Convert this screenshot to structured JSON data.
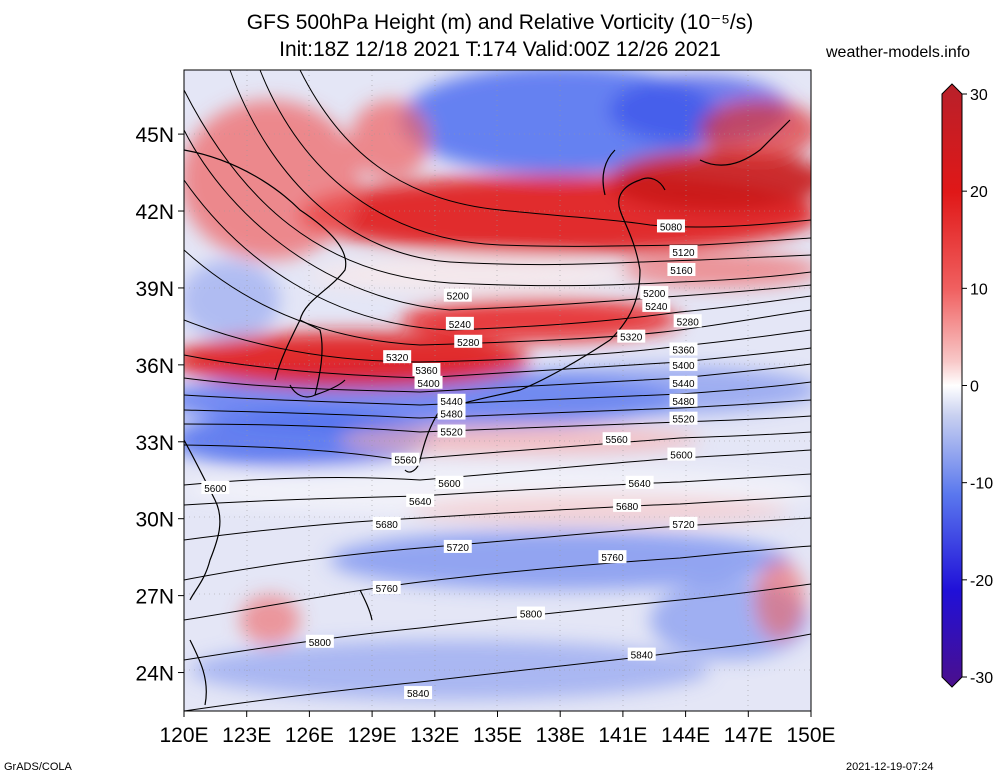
{
  "header": {
    "title_line1": "GFS 500hPa Height (m) and Relative Vorticity (10⁻⁵/s)",
    "title_line2": "Init:18Z 12/18 2021 T:174 Valid:00Z 12/26 2021",
    "site": "weather-models.info"
  },
  "footer": {
    "left": "GrADS/COLA",
    "right": "2021-12-19-07:24"
  },
  "map": {
    "lon_range": [
      120,
      150
    ],
    "lat_range": [
      22.5,
      47.5
    ],
    "lat_ticks": [
      {
        "value": 24,
        "label": "24N"
      },
      {
        "value": 27,
        "label": "27N"
      },
      {
        "value": 30,
        "label": "30N"
      },
      {
        "value": 33,
        "label": "33N"
      },
      {
        "value": 36,
        "label": "36N"
      },
      {
        "value": 39,
        "label": "39N"
      },
      {
        "value": 42,
        "label": "42N"
      },
      {
        "value": 45,
        "label": "45N"
      }
    ],
    "lon_ticks": [
      {
        "value": 120,
        "label": "120E"
      },
      {
        "value": 123,
        "label": "123E"
      },
      {
        "value": 126,
        "label": "126E"
      },
      {
        "value": 129,
        "label": "129E"
      },
      {
        "value": 132,
        "label": "132E"
      },
      {
        "value": 135,
        "label": "135E"
      },
      {
        "value": 138,
        "label": "138E"
      },
      {
        "value": 141,
        "label": "141E"
      },
      {
        "value": 144,
        "label": "144E"
      },
      {
        "value": 147,
        "label": "147E"
      },
      {
        "value": 150,
        "label": "150E"
      }
    ],
    "contour_labels": [
      {
        "text": "5080",
        "lon": 143.3,
        "lat": 41.4
      },
      {
        "text": "5120",
        "lon": 143.9,
        "lat": 40.4
      },
      {
        "text": "5160",
        "lon": 143.8,
        "lat": 39.7
      },
      {
        "text": "5200",
        "lon": 142.5,
        "lat": 38.8
      },
      {
        "text": "5200",
        "lon": 133.1,
        "lat": 38.7
      },
      {
        "text": "5240",
        "lon": 142.6,
        "lat": 38.3
      },
      {
        "text": "5240",
        "lon": 133.2,
        "lat": 37.6
      },
      {
        "text": "5280",
        "lon": 144.1,
        "lat": 37.7
      },
      {
        "text": "5280",
        "lon": 133.6,
        "lat": 36.9
      },
      {
        "text": "5320",
        "lon": 141.4,
        "lat": 37.1
      },
      {
        "text": "5320",
        "lon": 130.2,
        "lat": 36.3
      },
      {
        "text": "5360",
        "lon": 143.9,
        "lat": 36.6
      },
      {
        "text": "5360",
        "lon": 131.6,
        "lat": 35.8
      },
      {
        "text": "5400",
        "lon": 143.9,
        "lat": 36.0
      },
      {
        "text": "5400",
        "lon": 131.7,
        "lat": 35.3
      },
      {
        "text": "5440",
        "lon": 143.9,
        "lat": 35.3
      },
      {
        "text": "5440",
        "lon": 132.8,
        "lat": 34.6
      },
      {
        "text": "5480",
        "lon": 143.9,
        "lat": 34.6
      },
      {
        "text": "5480",
        "lon": 132.8,
        "lat": 34.1
      },
      {
        "text": "5520",
        "lon": 143.9,
        "lat": 33.9
      },
      {
        "text": "5520",
        "lon": 132.8,
        "lat": 33.4
      },
      {
        "text": "5560",
        "lon": 130.6,
        "lat": 32.3
      },
      {
        "text": "5560",
        "lon": 140.7,
        "lat": 33.1
      },
      {
        "text": "5600",
        "lon": 121.5,
        "lat": 31.2
      },
      {
        "text": "5600",
        "lon": 132.7,
        "lat": 31.4
      },
      {
        "text": "5600",
        "lon": 143.8,
        "lat": 32.5
      },
      {
        "text": "5640",
        "lon": 131.3,
        "lat": 30.7
      },
      {
        "text": "5640",
        "lon": 141.8,
        "lat": 31.4
      },
      {
        "text": "5680",
        "lon": 129.7,
        "lat": 29.8
      },
      {
        "text": "5680",
        "lon": 141.2,
        "lat": 30.5
      },
      {
        "text": "5720",
        "lon": 133.1,
        "lat": 28.9
      },
      {
        "text": "5720",
        "lon": 143.9,
        "lat": 29.8
      },
      {
        "text": "5760",
        "lon": 129.7,
        "lat": 27.3
      },
      {
        "text": "5760",
        "lon": 140.5,
        "lat": 28.5
      },
      {
        "text": "5800",
        "lon": 136.6,
        "lat": 26.3
      },
      {
        "text": "5800",
        "lon": 126.5,
        "lat": 25.2
      },
      {
        "text": "5840",
        "lon": 141.9,
        "lat": 24.7
      },
      {
        "text": "5840",
        "lon": 131.2,
        "lat": 23.2
      }
    ]
  },
  "colorbar": {
    "ticks": [
      {
        "value": 30,
        "label": "30"
      },
      {
        "value": 20,
        "label": "20"
      },
      {
        "value": 10,
        "label": "10"
      },
      {
        "value": 0,
        "label": "0"
      },
      {
        "value": -10,
        "label": "-10"
      },
      {
        "value": -20,
        "label": "-20"
      },
      {
        "value": -30,
        "label": "-30"
      }
    ],
    "colors": [
      "#4b0f8c",
      "#2b1ad6",
      "#4d6af0",
      "#aabbee",
      "#ffffff",
      "#f4a8a8",
      "#f04040",
      "#d61a1a",
      "#b8202a"
    ]
  }
}
